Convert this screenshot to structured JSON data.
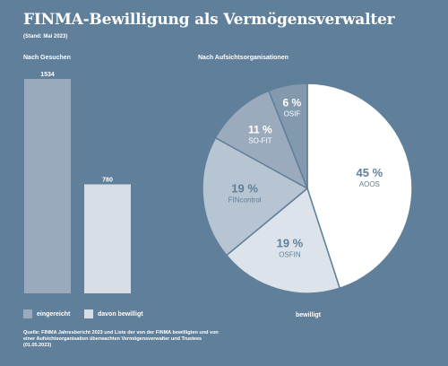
{
  "title": "FINMA-Bewilligung als Vermögensverwalter",
  "subtitle": "(Stand: Mai 2023)",
  "colors": {
    "background": "#5f7f9a",
    "bar_eingereicht": "#9aaabc",
    "bar_bewilligt": "#d6dde5",
    "pie_aoos": "#ffffff",
    "pie_osfin": "#dde3ea",
    "pie_fincontrol": "#b7c4d1",
    "pie_sofit": "#9babbd",
    "pie_osif": "#8299ae"
  },
  "chart_data": [
    {
      "type": "bar",
      "title": "Nach Gesuchen",
      "categories": [
        "eingereicht",
        "davon bewilligt"
      ],
      "values": [
        1534,
        780
      ],
      "value_labels": [
        "1534",
        "780"
      ],
      "ylim": [
        0,
        1534
      ],
      "grid": false
    },
    {
      "type": "pie",
      "title": "Nach Aufsichtsorganisationen",
      "legend": "bewilligt",
      "slices": [
        {
          "label": "AOOS",
          "value": 45,
          "display": "45 %"
        },
        {
          "label": "OSFIN",
          "value": 19,
          "display": "19 %"
        },
        {
          "label": "FINcontrol",
          "value": 19,
          "display": "19 %"
        },
        {
          "label": "SO-FIT",
          "value": 11,
          "display": "11 %"
        },
        {
          "label": "OSIF",
          "value": 6,
          "display": "6 %"
        }
      ]
    }
  ],
  "source": "Quelle: FINMA Jahresbericht 2023 und Liste der von der FINMA bewilligten und von einer Aufsichtsorganisation überwachten Vermögensverwalter und Trustees (01.05.2023)"
}
